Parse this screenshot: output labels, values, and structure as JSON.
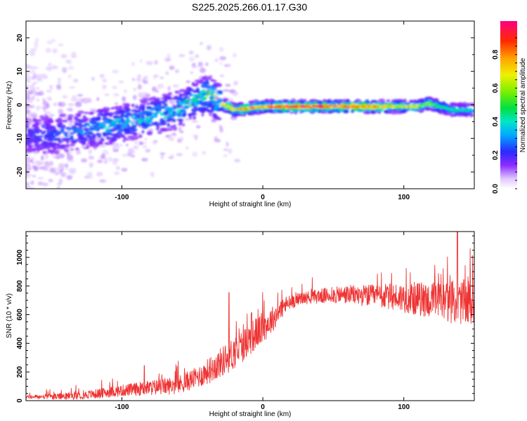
{
  "title": "S225.2025.266.01.17.G30",
  "chart_data": [
    {
      "type": "heatmap",
      "name": "spectrogram",
      "xlabel": "Height of straight line (km)",
      "ylabel": "Frequency (Hz)",
      "xlim": [
        -168,
        150
      ],
      "ylim": [
        -25,
        25
      ],
      "xticks": [
        {
          "value": -100,
          "label": "-100"
        },
        {
          "value": 0,
          "label": "0"
        },
        {
          "value": 100,
          "label": "100"
        }
      ],
      "yticks": [
        {
          "value": -20,
          "label": "-20"
        },
        {
          "value": -10,
          "label": "-10"
        },
        {
          "value": 0,
          "label": "0"
        },
        {
          "value": 10,
          "label": "10"
        },
        {
          "value": 20,
          "label": "20"
        }
      ],
      "ridge": {
        "x": [
          -165,
          -150,
          -135,
          -120,
          -105,
          -90,
          -75,
          -60,
          -50,
          -40,
          -35,
          -30,
          -20,
          -10,
          0,
          20,
          40,
          60,
          75,
          90,
          100,
          110,
          118,
          125,
          135,
          150
        ],
        "freq": [
          -9,
          -9,
          -8,
          -7,
          -6,
          -4.5,
          -3,
          -1.5,
          1,
          3,
          2,
          0.5,
          -1.5,
          -1,
          -0.5,
          -0.5,
          -0.5,
          -0.5,
          -0.5,
          -0.5,
          -0.5,
          -0.5,
          0.5,
          -0.5,
          -1.5,
          -1.5
        ],
        "amp": [
          0.22,
          0.25,
          0.3,
          0.35,
          0.4,
          0.4,
          0.42,
          0.42,
          0.45,
          0.55,
          0.6,
          0.65,
          0.75,
          0.8,
          0.85,
          0.95,
          0.9,
          0.95,
          0.85,
          0.75,
          0.7,
          0.65,
          0.6,
          0.5,
          0.45,
          0.4
        ]
      },
      "colorbar": {
        "label": "Normalized spectral amplitude",
        "range": [
          0,
          1
        ],
        "ticks": [
          {
            "value": 0.0,
            "label": "0.0"
          },
          {
            "value": 0.2,
            "label": "0.2"
          },
          {
            "value": 0.4,
            "label": "0.4"
          },
          {
            "value": 0.6,
            "label": "0.6"
          },
          {
            "value": 0.8,
            "label": "0.8"
          }
        ]
      }
    },
    {
      "type": "line",
      "name": "snr",
      "xlabel": "Height of straight line (km)",
      "ylabel": "SNR (10 * v/v)",
      "xlim": [
        -168,
        150
      ],
      "ylim": [
        0,
        1180
      ],
      "xticks": [
        {
          "value": -100,
          "label": "-100"
        },
        {
          "value": 0,
          "label": "0"
        },
        {
          "value": 100,
          "label": "100"
        }
      ],
      "yticks": [
        {
          "value": 0,
          "label": "0"
        },
        {
          "value": 200,
          "label": "200"
        },
        {
          "value": 400,
          "label": "400"
        },
        {
          "value": 600,
          "label": "600"
        },
        {
          "value": 800,
          "label": "800"
        },
        {
          "value": 1000,
          "label": "1000"
        }
      ],
      "color": "#ee3333",
      "trend": {
        "x": [
          -168,
          -140,
          -120,
          -100,
          -80,
          -60,
          -45,
          -35,
          -25,
          -15,
          -5,
          5,
          15,
          25,
          40,
          60,
          80,
          100,
          120,
          135,
          150
        ],
        "y": [
          25,
          30,
          45,
          70,
          90,
          110,
          170,
          230,
          300,
          380,
          470,
          550,
          660,
          710,
          730,
          740,
          730,
          720,
          700,
          690,
          680
        ]
      },
      "noise": {
        "x": [
          -168,
          -100,
          -50,
          -20,
          0,
          25,
          80,
          120,
          150
        ],
        "amp": [
          12,
          40,
          70,
          120,
          110,
          40,
          80,
          130,
          170
        ]
      },
      "peaks": [
        {
          "x": -84,
          "y": 245
        },
        {
          "x": -24,
          "y": 755
        },
        {
          "x": -8,
          "y": 615
        },
        {
          "x": 138,
          "y": 1180
        }
      ]
    }
  ]
}
